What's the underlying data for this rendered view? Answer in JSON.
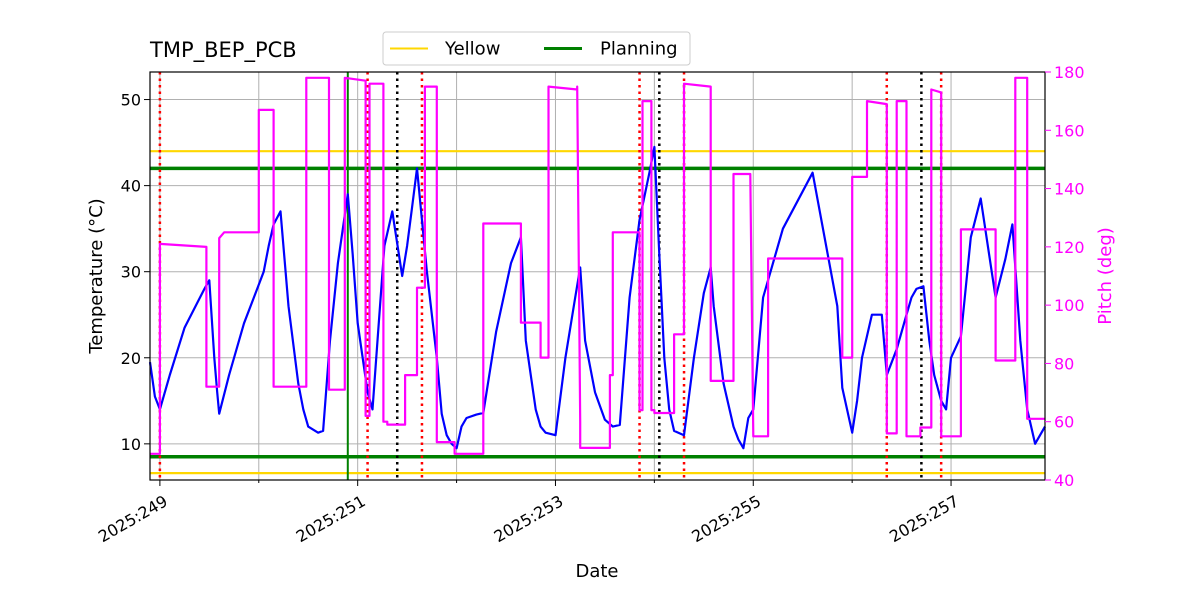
{
  "chart_data": {
    "type": "line",
    "title": "TMP_BEP_PCB",
    "xlabel": "Date",
    "ylabel": "Temperature ($^\\circ$C)",
    "ylabel_display": "Temperature (°C)",
    "y2label": "Pitch (deg)",
    "x_range": [
      248.9,
      257.95
    ],
    "ylim": [
      5.8,
      53.2
    ],
    "y2lim": [
      40,
      180
    ],
    "x_ticks": [
      249,
      251,
      253,
      255,
      257
    ],
    "x_tick_labels": [
      "2025:249",
      "2025:251",
      "2025:253",
      "2025:255",
      "2025:257"
    ],
    "x_minor_ticks": [
      250,
      252,
      254,
      256
    ],
    "y_ticks": [
      10,
      20,
      30,
      40,
      50
    ],
    "y2_ticks": [
      40,
      60,
      80,
      100,
      120,
      140,
      160,
      180
    ],
    "grid": true,
    "legend": {
      "position": "top-center",
      "entries": [
        {
          "label": "Yellow",
          "color": "#ffd700"
        },
        {
          "label": "Planning",
          "color": "#008000"
        }
      ]
    },
    "limits": [
      {
        "name": "yellow-hi",
        "value": 44,
        "color": "#ffd700"
      },
      {
        "name": "yellow-lo",
        "value": 6.6,
        "color": "#ffd700"
      },
      {
        "name": "planning-hi",
        "value": 42,
        "color": "#008000"
      },
      {
        "name": "planning-lo",
        "value": 8.5,
        "color": "#008000"
      }
    ],
    "now_line": {
      "x": 250.9,
      "color": "#008000"
    },
    "red_dotted_lines": [
      249.0,
      251.1,
      251.65,
      253.85,
      254.3,
      256.35,
      256.9
    ],
    "black_dotted_lines": [
      251.4,
      254.05,
      256.7
    ],
    "series": [
      {
        "name": "TMP_BEP_PCB",
        "axis": "left",
        "color": "#0000ff",
        "x": [
          248.9,
          248.95,
          249.0,
          249.1,
          249.25,
          249.45,
          249.5,
          249.55,
          249.58,
          249.6,
          249.7,
          249.85,
          250.0,
          250.05,
          250.1,
          250.15,
          250.22,
          250.3,
          250.4,
          250.45,
          250.5,
          250.6,
          250.65,
          250.72,
          250.8,
          250.9,
          250.95,
          251.0,
          251.1,
          251.15,
          251.2,
          251.27,
          251.35,
          251.45,
          251.5,
          251.55,
          251.6,
          251.7,
          251.8,
          251.85,
          251.9,
          251.95,
          252.0,
          252.05,
          252.1,
          252.2,
          252.27,
          252.4,
          252.55,
          252.65,
          252.7,
          252.8,
          252.85,
          252.9,
          253.0,
          253.1,
          253.2,
          253.25,
          253.3,
          253.4,
          253.5,
          253.58,
          253.65,
          253.75,
          253.85,
          253.95,
          254.0,
          254.05,
          254.1,
          254.15,
          254.2,
          254.3,
          254.4,
          254.5,
          254.57,
          254.6,
          254.7,
          254.8,
          254.85,
          254.9,
          254.95,
          255.0,
          255.1,
          255.3,
          255.6,
          255.85,
          255.9,
          256.0,
          256.05,
          256.1,
          256.2,
          256.3,
          256.35,
          256.45,
          256.55,
          256.6,
          256.65,
          256.72,
          256.78,
          256.83,
          256.9,
          256.95,
          257.0,
          257.1,
          257.2,
          257.3,
          257.45,
          257.55,
          257.62,
          257.7,
          257.77,
          257.85,
          257.95
        ],
        "values": [
          19.5,
          15.5,
          14.0,
          18.0,
          23.5,
          28.0,
          29.0,
          20.0,
          16.0,
          13.5,
          18.0,
          24.0,
          28.5,
          30.0,
          33.0,
          35.5,
          37.0,
          26.0,
          17.0,
          14.0,
          12.0,
          11.3,
          11.5,
          22.0,
          31.0,
          39.0,
          32.0,
          24.0,
          16.0,
          14.0,
          22.0,
          33.0,
          37.0,
          29.5,
          33.0,
          37.5,
          42.0,
          30.0,
          20.0,
          13.5,
          11.0,
          10.0,
          9.5,
          12.0,
          13.0,
          13.4,
          13.6,
          23.0,
          31.0,
          34.0,
          22.0,
          14.0,
          12.0,
          11.3,
          11.0,
          20.0,
          27.0,
          30.5,
          22.0,
          16.0,
          12.8,
          12.0,
          12.2,
          27.0,
          36.0,
          41.5,
          44.5,
          32.0,
          20.0,
          14.0,
          11.5,
          11.0,
          20.0,
          27.5,
          30.5,
          26.0,
          17.0,
          12.0,
          10.5,
          9.5,
          13.0,
          14.0,
          27.0,
          35.0,
          41.5,
          26.0,
          16.5,
          11.3,
          15.0,
          20.0,
          25.0,
          25.0,
          18.0,
          21.0,
          25.0,
          27.0,
          28.0,
          28.3,
          22.0,
          18.0,
          15.0,
          14.0,
          20.0,
          22.5,
          34.0,
          38.5,
          27.0,
          31.5,
          35.5,
          22.0,
          14.0,
          10.0,
          12.0
        ]
      },
      {
        "name": "Pitch",
        "axis": "right",
        "color": "#ff00ff",
        "x": [
          248.9,
          249.0,
          249.0,
          249.47,
          249.47,
          249.6,
          249.6,
          249.65,
          249.65,
          250.0,
          250.0,
          250.15,
          250.15,
          250.2,
          250.2,
          250.48,
          250.48,
          250.71,
          250.71,
          250.87,
          250.87,
          251.08,
          251.08,
          251.12,
          251.12,
          251.26,
          251.26,
          251.3,
          251.3,
          251.48,
          251.48,
          251.6,
          251.6,
          251.68,
          251.68,
          251.8,
          251.8,
          251.98,
          251.98,
          252.02,
          252.02,
          252.27,
          252.27,
          252.65,
          252.65,
          252.85,
          252.85,
          252.93,
          252.93,
          253.22,
          253.22,
          253.25,
          253.25,
          253.55,
          253.55,
          253.58,
          253.58,
          253.85,
          253.85,
          253.88,
          253.88,
          253.97,
          253.97,
          254.0,
          254.0,
          254.2,
          254.2,
          254.3,
          254.3,
          254.57,
          254.57,
          254.8,
          254.8,
          254.97,
          254.97,
          255.0,
          255.0,
          255.15,
          255.15,
          255.9,
          255.9,
          256.0,
          256.0,
          256.15,
          256.15,
          256.35,
          256.35,
          256.45,
          256.45,
          256.55,
          256.55,
          256.69,
          256.69,
          256.8,
          256.8,
          256.9,
          256.9,
          257.1,
          257.1,
          257.45,
          257.45,
          257.65,
          257.65,
          257.77,
          257.77,
          257.95
        ],
        "values": [
          49,
          49,
          121,
          120,
          72,
          72,
          123,
          125,
          125,
          125,
          167,
          167,
          72,
          72,
          72,
          72,
          178,
          178,
          71,
          71,
          178,
          177,
          62,
          62,
          176,
          176,
          60,
          60,
          59,
          59,
          76,
          76,
          106,
          106,
          175,
          175,
          53,
          53,
          49,
          49,
          49,
          49,
          128,
          128,
          94,
          94,
          82,
          82,
          175,
          174,
          175,
          60,
          51,
          51,
          76,
          76,
          125,
          125,
          64,
          64,
          170,
          170,
          64,
          64,
          63,
          63,
          90,
          90,
          176,
          175,
          74,
          74,
          145,
          145,
          145,
          55,
          55,
          55,
          116,
          116,
          82,
          82,
          144,
          144,
          170,
          169,
          56,
          56,
          170,
          170,
          55,
          55,
          58,
          58,
          174,
          173,
          55,
          55,
          126,
          126,
          81,
          81,
          178,
          178,
          61,
          61
        ]
      }
    ]
  }
}
